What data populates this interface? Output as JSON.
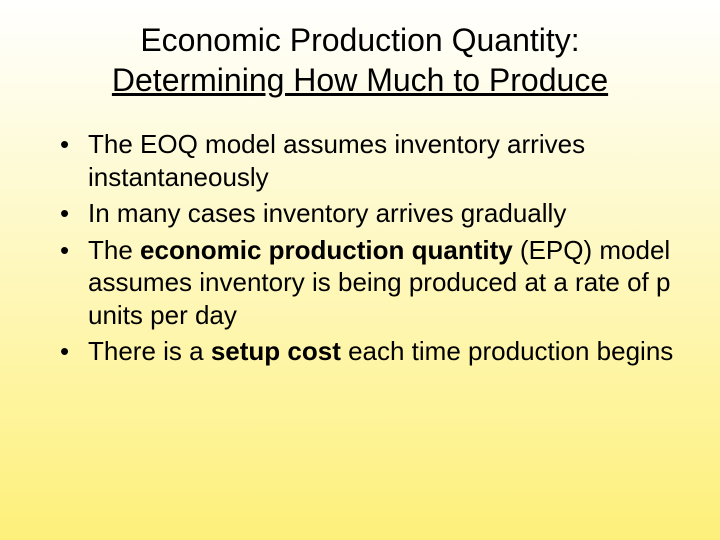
{
  "slide": {
    "background_gradient_top": "#ffffff",
    "background_gradient_bottom": "#fdf07a",
    "text_color": "#000000",
    "title_fontsize": 32,
    "body_fontsize": 26,
    "font_family": "Arial",
    "title_line1": "Economic Production Quantity:",
    "title_line2": "Determining How Much to Produce",
    "bullets": [
      {
        "pre": "The EOQ model assumes inventory arrives instantaneously",
        "bold": "",
        "post": ""
      },
      {
        "pre": "In many cases inventory arrives gradually",
        "bold": "",
        "post": ""
      },
      {
        "pre": "The ",
        "bold": "economic production quantity",
        "post": " (EPQ) model assumes inventory is being produced at a rate of p units per day"
      },
      {
        "pre": "There is a ",
        "bold": "setup cost",
        "post": " each time production begins"
      }
    ]
  }
}
